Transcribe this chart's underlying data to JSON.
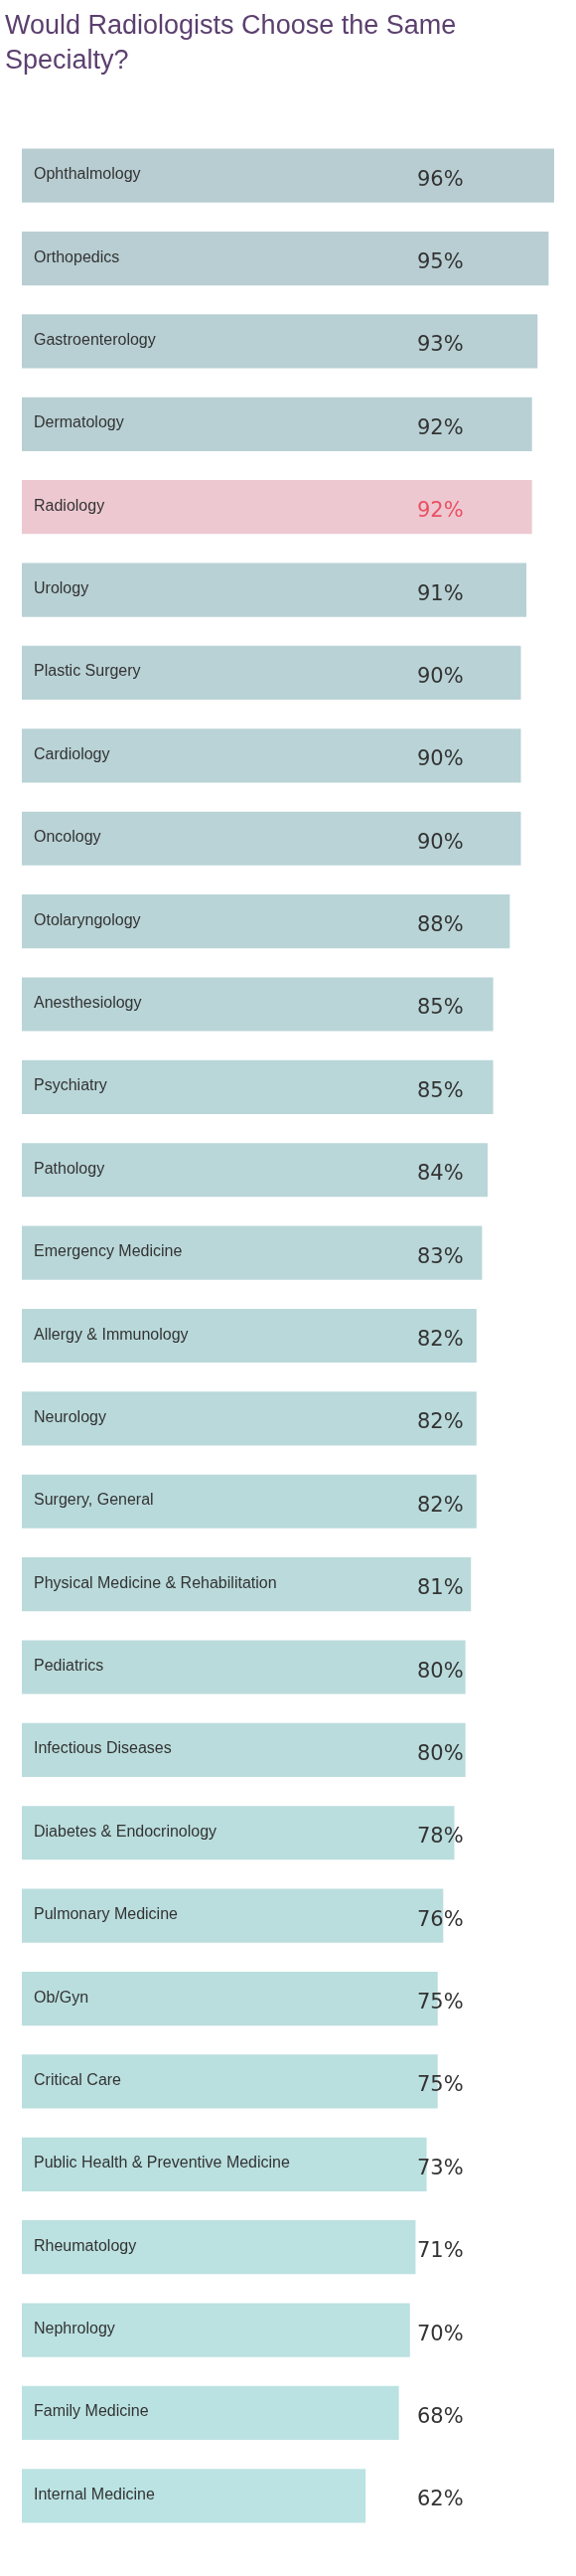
{
  "chart_data": {
    "type": "bar",
    "orientation": "horizontal",
    "title": "Would Radiologists Choose the Same Specialty?",
    "categories": [
      "Ophthalmology",
      "Orthopedics",
      "Gastroenterology",
      "Dermatology",
      "Radiology",
      "Urology",
      "Plastic Surgery",
      "Cardiology",
      "Oncology",
      "Otolaryngology",
      "Anesthesiology",
      "Psychiatry",
      "Pathology",
      "Emergency Medicine",
      "Allergy & Immunology",
      "Neurology",
      "Surgery, General",
      "Physical Medicine & Rehabilitation",
      "Pediatrics",
      "Infectious Diseases",
      "Diabetes & Endocrinology",
      "Pulmonary Medicine",
      "Ob/Gyn",
      "Critical Care",
      "Public Health & Preventive Medicine",
      "Rheumatology",
      "Nephrology",
      "Family Medicine",
      "Internal Medicine"
    ],
    "values": [
      96,
      95,
      93,
      92,
      92,
      91,
      90,
      90,
      90,
      88,
      85,
      85,
      84,
      83,
      82,
      82,
      82,
      81,
      80,
      80,
      78,
      76,
      75,
      75,
      73,
      71,
      70,
      68,
      62
    ],
    "value_labels": [
      "96%",
      "95%",
      "93%",
      "92%",
      "92%",
      "91%",
      "90%",
      "90%",
      "90%",
      "88%",
      "85%",
      "85%",
      "84%",
      "83%",
      "82%",
      "82%",
      "82%",
      "81%",
      "80%",
      "80%",
      "78%",
      "76%",
      "75%",
      "75%",
      "73%",
      "71%",
      "70%",
      "68%",
      "62%"
    ],
    "colors": [
      "#b8cdd2",
      "#b8ced3",
      "#b8cfd3",
      "#b8d0d4",
      "#edc8d1",
      "#b8d1d5",
      "#b9d2d6",
      "#b9d3d6",
      "#b9d3d7",
      "#b9d4d7",
      "#b9d5d8",
      "#b9d6d8",
      "#b9d6d9",
      "#b9d7d9",
      "#b9d8da",
      "#b9d9da",
      "#b9dadb",
      "#badadb",
      "#badbdc",
      "#badcdc",
      "#badddd",
      "#baddde",
      "#badede",
      "#badfdf",
      "#bae0e0",
      "#bbe1e0",
      "#bbe1e1",
      "#bbe2e2",
      "#bbe3e3"
    ],
    "xlim": [
      0,
      96
    ],
    "tick_labels": false
  }
}
